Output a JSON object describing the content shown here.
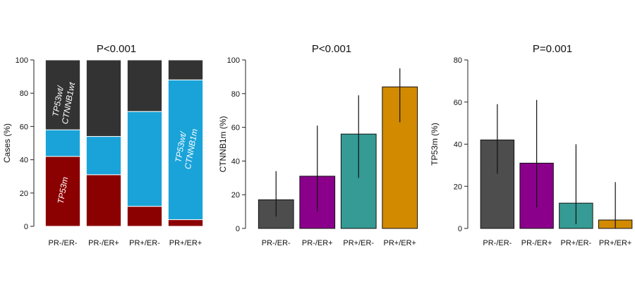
{
  "chart_data": [
    {
      "type": "bar",
      "stacked": true,
      "title": "P<0.001",
      "ylabel": "Cases (%)",
      "ylim": [
        0,
        100
      ],
      "yticks": [
        0,
        20,
        40,
        60,
        80,
        100
      ],
      "categories": [
        "PR-/ER-",
        "PR-/ER+",
        "PR+/ER-",
        "PR+/ER+"
      ],
      "series": [
        {
          "name": "TP53m",
          "label_lines": [
            "TP53m"
          ],
          "color": "#8b0000",
          "values": [
            42,
            31,
            12,
            4
          ]
        },
        {
          "name": "TP53wt/CTNNB1m",
          "label_lines": [
            "TP53wt/",
            "CTNNB1m"
          ],
          "color": "#1aa3d8",
          "values": [
            16,
            23,
            57,
            84
          ]
        },
        {
          "name": "TP53wt/CTNNB1wt",
          "label_lines": [
            "TP53wt/",
            "CTNNB1wt"
          ],
          "color": "#333333",
          "values": [
            42,
            46,
            31,
            12
          ]
        }
      ]
    },
    {
      "type": "bar",
      "title": "P<0.001",
      "ylabel": "CTNNB1m (%)",
      "ylim": [
        0,
        100
      ],
      "yticks": [
        0,
        20,
        40,
        60,
        80,
        100
      ],
      "categories": [
        "PR-/ER-",
        "PR-/ER+",
        "PR+/ER-",
        "PR+/ER+"
      ],
      "colors": [
        "#4d4d4d",
        "#8b008b",
        "#359b94",
        "#d28a00"
      ],
      "values": [
        17,
        31,
        56,
        84
      ],
      "error_low": [
        7,
        10,
        30,
        63
      ],
      "error_high": [
        34,
        61,
        79,
        95
      ]
    },
    {
      "type": "bar",
      "title": "P=0.001",
      "ylabel": "TP53m (%)",
      "ylim": [
        0,
        80
      ],
      "yticks": [
        0,
        20,
        40,
        60,
        80
      ],
      "categories": [
        "PR-/ER-",
        "PR-/ER+",
        "PR+/ER-",
        "PR+/ER+"
      ],
      "colors": [
        "#4d4d4d",
        "#8b008b",
        "#359b94",
        "#d28a00"
      ],
      "values": [
        42,
        31,
        12,
        4
      ],
      "error_low": [
        26,
        10,
        2,
        0
      ],
      "error_high": [
        59,
        61,
        40,
        22
      ]
    }
  ]
}
